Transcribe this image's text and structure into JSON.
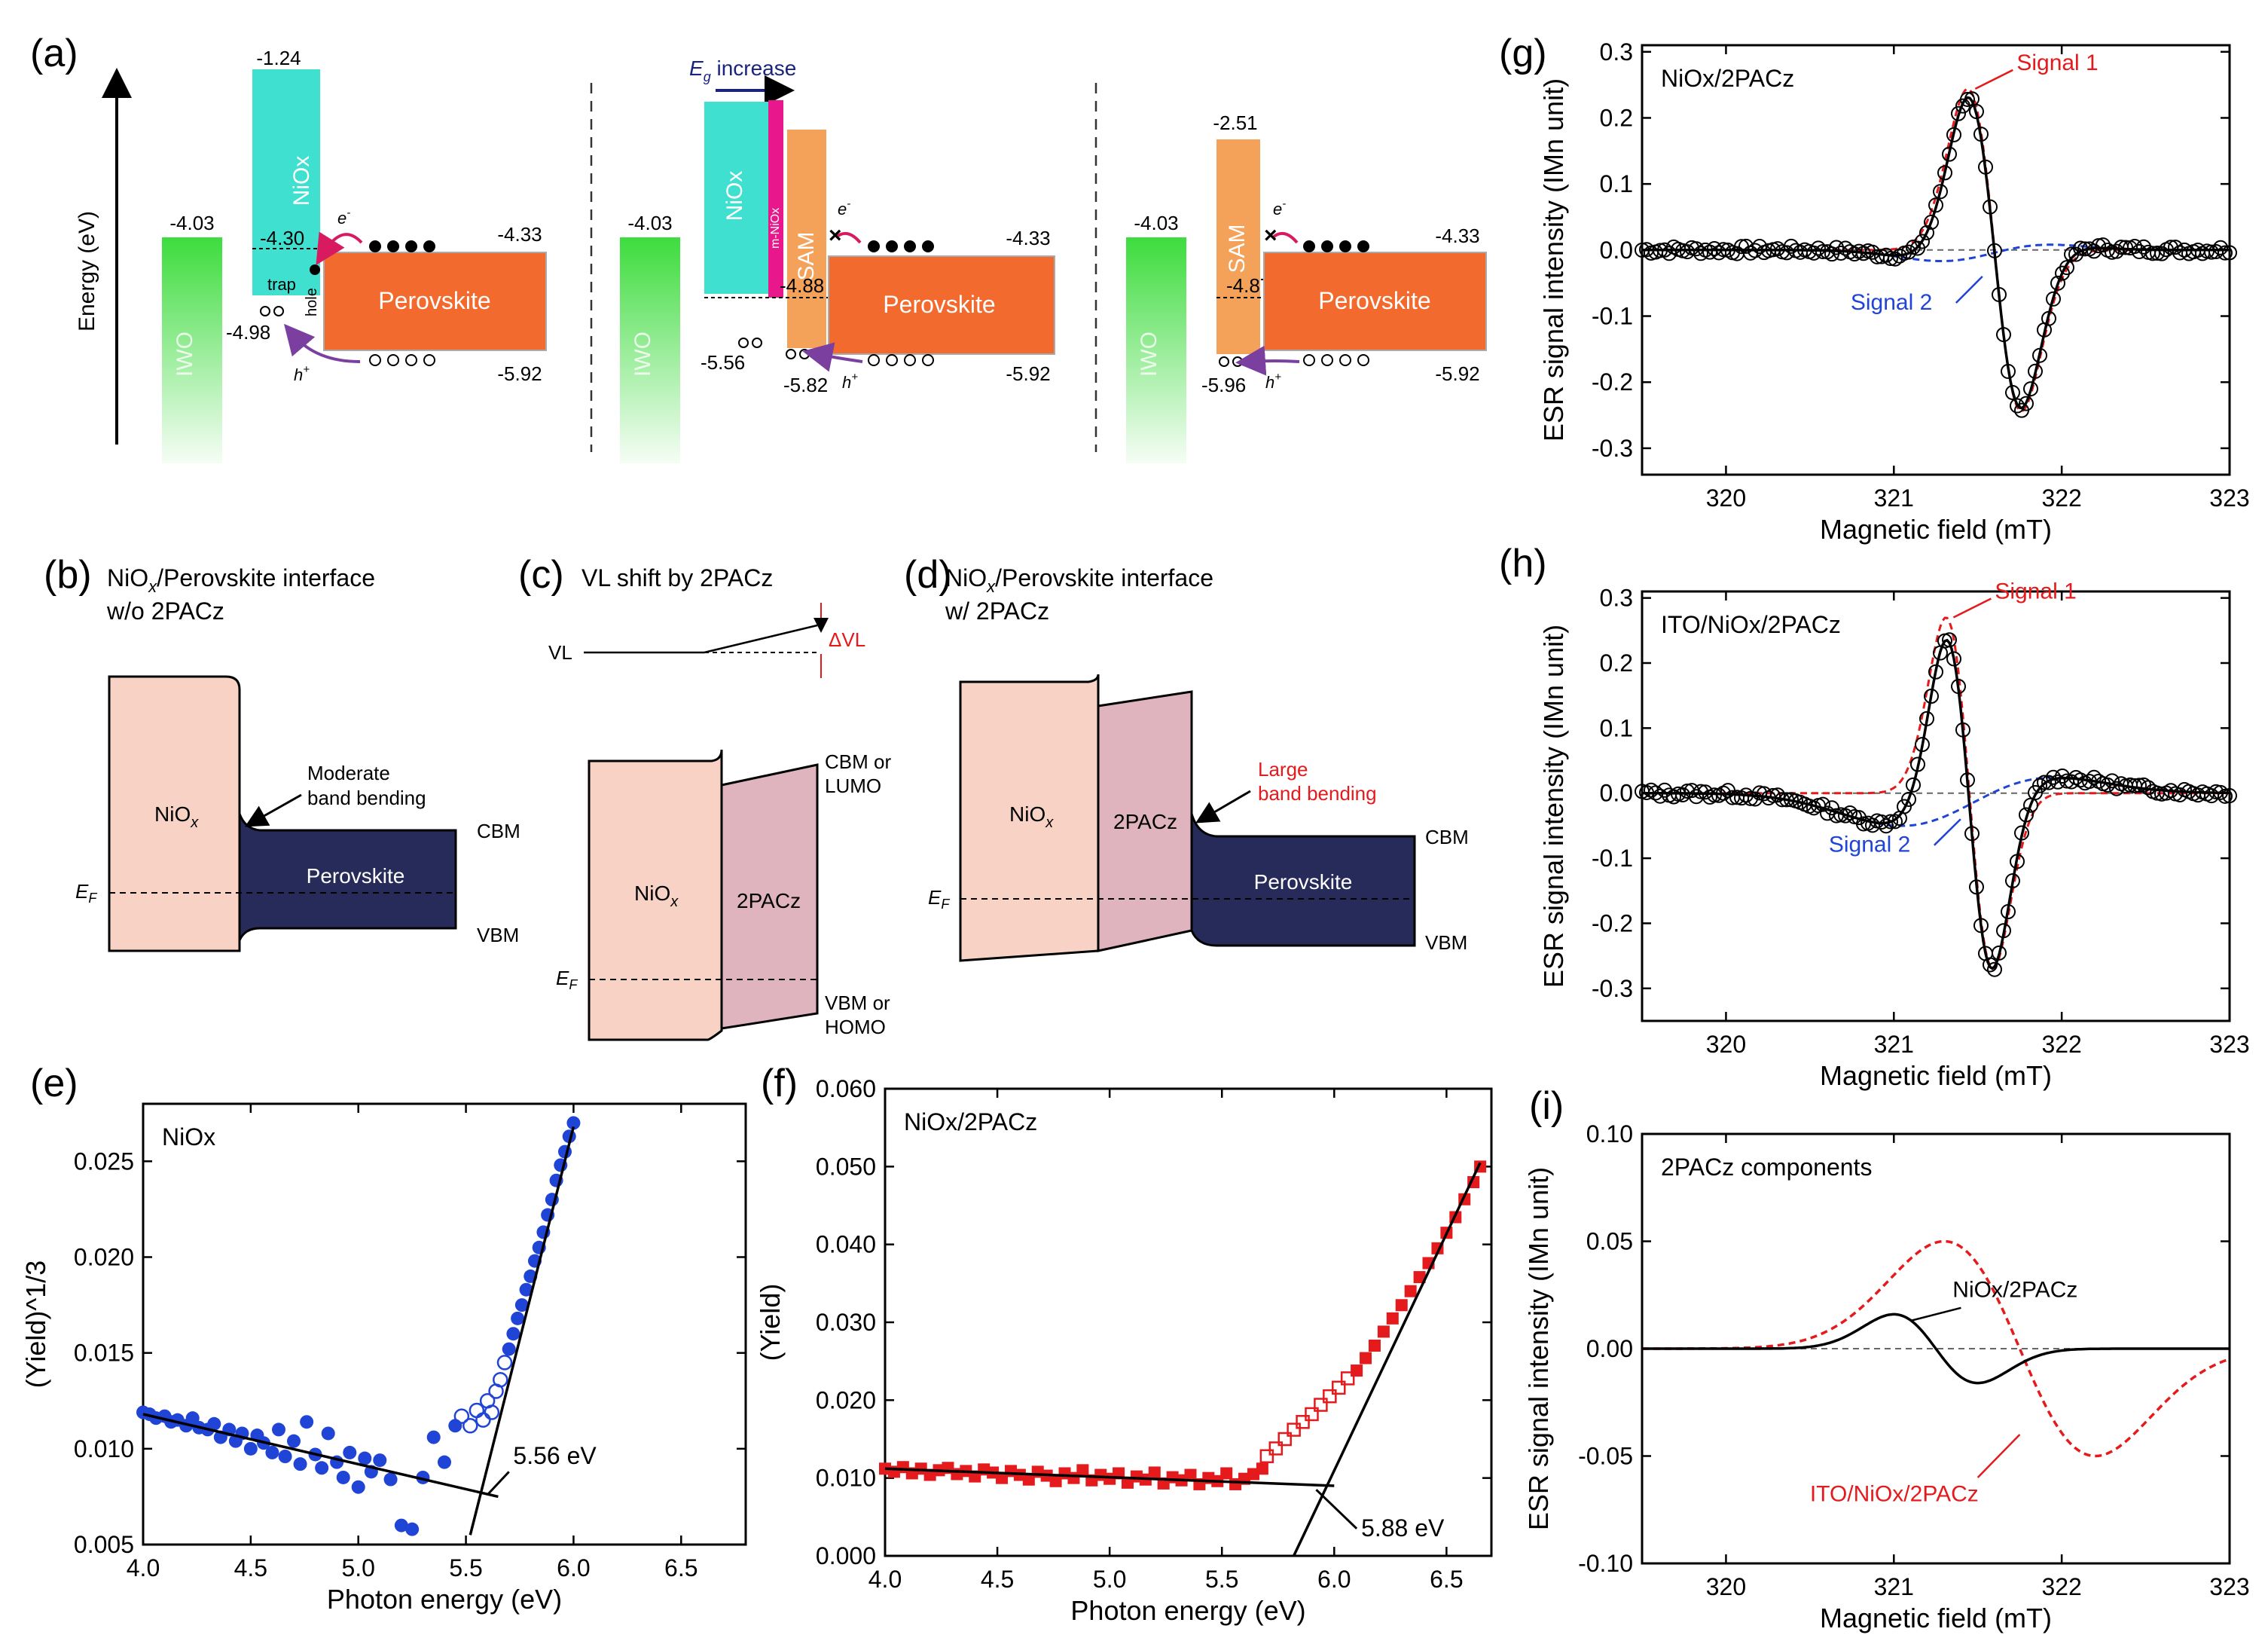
{
  "figure": {
    "panel_labels": [
      "(a)",
      "(b)",
      "(c)",
      "(d)",
      "(e)",
      "(f)",
      "(g)",
      "(h)",
      "(i)"
    ]
  },
  "panel_a": {
    "energy_axis_label": "Energy (eV)",
    "eg_increase_label": "E",
    "eg_increase_sub": "g",
    "eg_increase_rest": " increase",
    "iwo": "IWO",
    "nio": "NiOx",
    "mnio": "m-NiOx",
    "sam": "SAM",
    "perovskite": "Perovskite",
    "trap": "trap",
    "hole_label": "hole",
    "electron": "e",
    "hole": "h",
    "sup_minus": "-",
    "sup_plus": "+",
    "cross": "×",
    "v_iwo": "-4.03",
    "v_pero_cbm": "-4.33",
    "v_pero_vbm": "-5.92",
    "left": {
      "nio_cbm": "-1.24",
      "trap_level": "-4.30",
      "nio_vbm": "-4.98"
    },
    "middle": {
      "sam_homo": "-4.88",
      "nio_vbm": "-5.56",
      "sam_vbm": "-5.82"
    },
    "right": {
      "sam_lumo": "-2.51",
      "sam_level": "-4.87",
      "sam_homo": "-5.96"
    }
  },
  "panel_b": {
    "title1_a": "NiO",
    "title1_sub": "x",
    "title1_b": "/Perovskite interface",
    "title2": "w/o 2PACz",
    "nio": "NiO",
    "nio_sub": "x",
    "perovskite": "Perovskite",
    "annot1": "Moderate",
    "annot2": "band bending",
    "cbm": "CBM",
    "vbm": "VBM",
    "ef": "E",
    "ef_sub": "F"
  },
  "panel_c": {
    "title": "VL shift by 2PACz",
    "vl": "VL",
    "dvl": "ΔVL",
    "nio": "NiO",
    "nio_sub": "x",
    "pacz": "2PACz",
    "cbm1": "CBM or",
    "cbm2": "LUMO",
    "vbm1": "VBM or",
    "vbm2": "HOMO",
    "ef": "E",
    "ef_sub": "F"
  },
  "panel_d": {
    "title1_a": "NiO",
    "title1_sub": "x",
    "title1_b": "/Perovskite interface",
    "title2": "w/ 2PACz",
    "nio": "NiO",
    "nio_sub": "x",
    "pacz": "2PACz",
    "perovskite": "Perovskite",
    "annot1": "Large",
    "annot2": "band bending",
    "cbm": "CBM",
    "vbm": "VBM",
    "ef": "E",
    "ef_sub": "F"
  },
  "colors": {
    "nio_bar": "#40e0d0",
    "iwo": "#3ddc3d",
    "perovskite_orange": "#f26a2e",
    "sam": "#f4a25a",
    "mnio": "#e8188c",
    "nio_band": "#f8d3c5",
    "pacz_band": "#e0b4bf",
    "perovskite_band": "#262b5a",
    "red": "#e41a1c",
    "blue": "#1f44d6"
  },
  "chart_data": [
    {
      "id": "e",
      "type": "scatter",
      "title": "NiOx",
      "xlabel": "Photon energy (eV)",
      "ylabel": "(Yield)^1/3",
      "xlim": [
        4.0,
        6.8
      ],
      "ylim": [
        0.005,
        0.028
      ],
      "xticks": [
        4.0,
        4.5,
        5.0,
        5.5,
        6.0,
        6.5
      ],
      "xtick_labels": [
        "4.0",
        "4.5",
        "5.0",
        "5.5",
        "6.0",
        "6.5"
      ],
      "yticks": [
        0.005,
        0.01,
        0.015,
        0.02,
        0.025
      ],
      "ytick_labels": [
        "0.005",
        "0.010",
        "0.015",
        "0.020",
        "0.025"
      ],
      "series_filled": {
        "x": [
          4.0,
          4.03,
          4.06,
          4.1,
          4.13,
          4.16,
          4.2,
          4.23,
          4.26,
          4.3,
          4.33,
          4.36,
          4.4,
          4.43,
          4.46,
          4.5,
          4.53,
          4.56,
          4.6,
          4.63,
          4.66,
          4.7,
          4.73,
          4.76,
          4.8,
          4.83,
          4.86,
          4.9,
          4.93,
          4.96,
          5.0,
          5.03,
          5.06,
          5.1,
          5.15,
          5.2,
          5.25,
          5.3,
          5.35,
          5.4,
          5.45,
          5.7,
          5.72,
          5.74,
          5.76,
          5.78,
          5.8,
          5.82,
          5.84,
          5.86,
          5.88,
          5.9,
          5.92,
          5.94,
          5.96,
          5.98,
          6.0
        ],
        "y": [
          0.0119,
          0.0118,
          0.0116,
          0.0117,
          0.0114,
          0.0115,
          0.0112,
          0.0116,
          0.0111,
          0.011,
          0.0113,
          0.0106,
          0.011,
          0.0104,
          0.0108,
          0.01,
          0.0107,
          0.0103,
          0.0098,
          0.011,
          0.0096,
          0.0104,
          0.0092,
          0.0114,
          0.0097,
          0.009,
          0.0108,
          0.0093,
          0.0085,
          0.0098,
          0.008,
          0.0095,
          0.0088,
          0.0094,
          0.0084,
          0.006,
          0.0058,
          0.0085,
          0.0106,
          0.0093,
          0.0112,
          0.0152,
          0.016,
          0.0168,
          0.0175,
          0.0183,
          0.019,
          0.0198,
          0.0205,
          0.0213,
          0.0222,
          0.023,
          0.024,
          0.0248,
          0.0255,
          0.0263,
          0.027
        ]
      },
      "series_open": {
        "x": [
          5.48,
          5.52,
          5.55,
          5.58,
          5.6,
          5.62,
          5.64,
          5.66,
          5.68
        ],
        "y": [
          0.0117,
          0.0112,
          0.012,
          0.0115,
          0.0125,
          0.0119,
          0.013,
          0.0136,
          0.0145
        ]
      },
      "fit_lines": [
        {
          "x": [
            4.0,
            5.65
          ],
          "y": [
            0.0118,
            0.0075
          ]
        },
        {
          "x": [
            5.52,
            6.0
          ],
          "y": [
            0.0055,
            0.0268
          ]
        }
      ],
      "annotation": "5.56 eV"
    },
    {
      "id": "f",
      "type": "scatter",
      "title": "NiOx/2PACz",
      "xlabel": "Photon energy (eV)",
      "ylabel": "(Yield)",
      "xlim": [
        4.0,
        6.7
      ],
      "ylim": [
        0.0,
        0.06
      ],
      "xticks": [
        4.0,
        4.5,
        5.0,
        5.5,
        6.0,
        6.5
      ],
      "xtick_labels": [
        "4.0",
        "4.5",
        "5.0",
        "5.5",
        "6.0",
        "6.5"
      ],
      "yticks": [
        0.0,
        0.01,
        0.02,
        0.03,
        0.04,
        0.05,
        0.06
      ],
      "ytick_labels": [
        "0.000",
        "0.010",
        "0.020",
        "0.030",
        "0.040",
        "0.050",
        "0.060"
      ],
      "series_filled": {
        "x": [
          4.0,
          4.04,
          4.08,
          4.12,
          4.16,
          4.2,
          4.24,
          4.28,
          4.32,
          4.36,
          4.4,
          4.44,
          4.48,
          4.52,
          4.56,
          4.6,
          4.64,
          4.68,
          4.72,
          4.76,
          4.8,
          4.84,
          4.88,
          4.92,
          4.96,
          5.0,
          5.04,
          5.08,
          5.12,
          5.16,
          5.2,
          5.24,
          5.28,
          5.32,
          5.36,
          5.4,
          5.44,
          5.48,
          5.52,
          5.56,
          5.6,
          5.64,
          5.68,
          6.1,
          6.14,
          6.18,
          6.22,
          6.26,
          6.3,
          6.34,
          6.38,
          6.42,
          6.46,
          6.5,
          6.54,
          6.58,
          6.62,
          6.65
        ],
        "y": [
          0.0112,
          0.0108,
          0.0114,
          0.0106,
          0.0112,
          0.0104,
          0.011,
          0.0113,
          0.0105,
          0.0109,
          0.0102,
          0.0111,
          0.0107,
          0.01,
          0.0109,
          0.0104,
          0.0098,
          0.0108,
          0.0103,
          0.0096,
          0.0106,
          0.01,
          0.011,
          0.0097,
          0.0104,
          0.0099,
          0.0106,
          0.0094,
          0.0102,
          0.0098,
          0.0107,
          0.0093,
          0.0101,
          0.0097,
          0.0104,
          0.0092,
          0.01,
          0.0096,
          0.0106,
          0.0092,
          0.0099,
          0.0105,
          0.0112,
          0.0238,
          0.0254,
          0.027,
          0.0288,
          0.0305,
          0.0322,
          0.034,
          0.0358,
          0.0376,
          0.0395,
          0.0415,
          0.0435,
          0.0458,
          0.048,
          0.05
        ]
      },
      "series_open": {
        "x": [
          5.7,
          5.74,
          5.78,
          5.82,
          5.86,
          5.9,
          5.94,
          5.98,
          6.02,
          6.06
        ],
        "y": [
          0.0128,
          0.0138,
          0.015,
          0.0162,
          0.0172,
          0.0182,
          0.0194,
          0.0205,
          0.0216,
          0.0228
        ]
      },
      "fit_lines": [
        {
          "x": [
            4.0,
            6.0
          ],
          "y": [
            0.0112,
            0.009
          ]
        },
        {
          "x": [
            5.82,
            6.65
          ],
          "y": [
            0.0,
            0.0505
          ]
        }
      ],
      "annotation": "5.88 eV"
    },
    {
      "id": "g",
      "type": "line",
      "title": "NiOx/2PACz",
      "xlabel": "Magnetic field (mT)",
      "ylabel": "ESR signal intensity (IMn unit)",
      "xlim": [
        319.5,
        323.0
      ],
      "ylim": [
        -0.34,
        0.31
      ],
      "xticks": [
        320,
        321,
        322,
        323
      ],
      "xtick_labels": [
        "320",
        "321",
        "322",
        "323"
      ],
      "yticks": [
        -0.3,
        -0.2,
        -0.1,
        0.0,
        0.1,
        0.2,
        0.3
      ],
      "ytick_labels": [
        "-0.3",
        "-0.2",
        "-0.1",
        "0.0",
        "0.1",
        "0.2",
        "0.3"
      ],
      "signal1": {
        "x0": 321.6,
        "w": 0.16,
        "A": 0.244,
        "broad": false
      },
      "signal2": {
        "x0": 321.55,
        "w": 0.32,
        "A": -0.02,
        "broad": true
      },
      "legend": [
        "Signal 1",
        "Signal 2"
      ]
    },
    {
      "id": "h",
      "type": "line",
      "title": "ITO/NiOx/2PACz",
      "xlabel": "Magnetic field (mT)",
      "ylabel": "ESR signal intensity (IMn unit)",
      "xlim": [
        319.5,
        323.0
      ],
      "ylim": [
        -0.35,
        0.31
      ],
      "xticks": [
        320,
        321,
        322,
        323
      ],
      "xtick_labels": [
        "320",
        "321",
        "322",
        "323"
      ],
      "yticks": [
        -0.3,
        -0.2,
        -0.1,
        0.0,
        0.1,
        0.2,
        0.3
      ],
      "ytick_labels": [
        "-0.3",
        "-0.2",
        "-0.1",
        "0.0",
        "0.1",
        "0.2",
        "0.3"
      ],
      "signal1": {
        "x0": 321.45,
        "w": 0.14,
        "A": 0.27,
        "broad": false
      },
      "signal2": {
        "x0": 321.42,
        "w": 0.45,
        "A": -0.06,
        "broad": true
      },
      "legend": [
        "Signal 1",
        "Signal 2"
      ]
    },
    {
      "id": "i",
      "type": "line",
      "title": "2PACz components",
      "xlabel": "Magnetic field (mT)",
      "ylabel": "ESR signal intensity (IMn unit)",
      "xlim": [
        319.5,
        323.0
      ],
      "ylim": [
        -0.1,
        0.1
      ],
      "xticks": [
        320,
        321,
        322,
        323
      ],
      "xtick_labels": [
        "320",
        "321",
        "322",
        "323"
      ],
      "yticks": [
        -0.1,
        -0.05,
        0.0,
        0.05,
        0.1
      ],
      "ytick_labels": [
        "-0.10",
        "-0.05",
        "0.00",
        "0.05",
        "0.10"
      ],
      "nio": {
        "x0": 321.25,
        "w": 0.25,
        "A": 0.016,
        "label": "NiOx/2PACz"
      },
      "ito": {
        "x0": 321.75,
        "w": 0.45,
        "A": 0.05,
        "label": "ITO/NiOx/2PACz"
      }
    }
  ]
}
